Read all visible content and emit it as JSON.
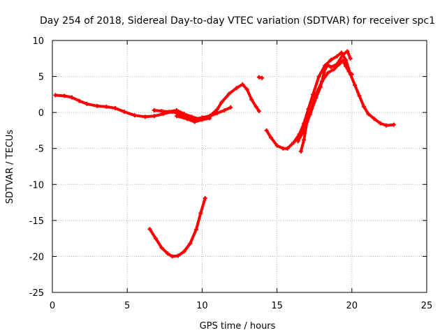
{
  "chart_data": {
    "type": "scatter",
    "title": "Day 254 of 2018, Sidereal Day-to-day VTEC variation (SDTVAR) for receiver spc1",
    "xlabel": "GPS time / hours",
    "ylabel": "SDTVAR / TECUs",
    "xlim": [
      0,
      25
    ],
    "ylim": [
      -25,
      10
    ],
    "xticks": [
      0,
      5,
      10,
      15,
      20,
      25
    ],
    "yticks": [
      10,
      5,
      0,
      -5,
      -10,
      -15,
      -20,
      -25
    ],
    "grid": true,
    "legend": "none",
    "color": "#ff0000",
    "series": [
      {
        "name": "segment-1",
        "points": [
          [
            0.2,
            2.4
          ],
          [
            0.8,
            2.3
          ],
          [
            1.3,
            2.1
          ],
          [
            1.8,
            1.6
          ],
          [
            2.3,
            1.2
          ],
          [
            3.0,
            0.9
          ],
          [
            3.6,
            0.8
          ],
          [
            4.2,
            0.6
          ],
          [
            4.8,
            0.1
          ],
          [
            5.5,
            -0.4
          ],
          [
            6.2,
            -0.6
          ],
          [
            6.8,
            -0.5
          ],
          [
            7.4,
            -0.2
          ],
          [
            8.0,
            0.1
          ],
          [
            8.6,
            -0.3
          ],
          [
            9.2,
            -0.8
          ],
          [
            9.6,
            -0.9
          ],
          [
            10.0,
            -0.7
          ],
          [
            10.5,
            -0.5
          ],
          [
            11.0,
            0.4
          ],
          [
            11.3,
            1.4
          ],
          [
            11.8,
            2.6
          ],
          [
            12.3,
            3.4
          ],
          [
            12.7,
            3.9
          ],
          [
            13.0,
            3.2
          ],
          [
            13.3,
            1.8
          ],
          [
            13.6,
            0.8
          ],
          [
            13.8,
            0.2
          ]
        ]
      },
      {
        "name": "segment-2",
        "points": [
          [
            6.8,
            0.3
          ],
          [
            7.3,
            0.2
          ],
          [
            7.8,
            0.1
          ],
          [
            8.3,
            0.3
          ],
          [
            8.8,
            -0.2
          ],
          [
            9.3,
            -0.6
          ],
          [
            9.8,
            -0.9
          ],
          [
            10.4,
            -0.6
          ],
          [
            11.0,
            -0.1
          ],
          [
            11.5,
            0.3
          ],
          [
            11.9,
            0.7
          ]
        ]
      },
      {
        "name": "segment-3",
        "points": [
          [
            8.3,
            -0.5
          ],
          [
            9.0,
            -0.9
          ],
          [
            9.5,
            -1.3
          ],
          [
            10.0,
            -1.0
          ],
          [
            10.5,
            -0.8
          ]
        ]
      },
      {
        "name": "segment-4",
        "points": [
          [
            13.8,
            4.9
          ],
          [
            14.0,
            4.8
          ]
        ]
      },
      {
        "name": "segment-5",
        "points": [
          [
            6.5,
            -16.2
          ],
          [
            6.9,
            -17.5
          ],
          [
            7.3,
            -18.8
          ],
          [
            7.7,
            -19.6
          ],
          [
            8.0,
            -20.0
          ],
          [
            8.4,
            -19.9
          ],
          [
            8.8,
            -19.3
          ],
          [
            9.2,
            -18.2
          ],
          [
            9.6,
            -16.3
          ],
          [
            9.9,
            -14.0
          ],
          [
            10.2,
            -11.9
          ]
        ]
      },
      {
        "name": "segment-6",
        "points": [
          [
            14.3,
            -2.5
          ],
          [
            14.6,
            -3.5
          ],
          [
            15.0,
            -4.6
          ],
          [
            15.4,
            -5.0
          ],
          [
            15.7,
            -5.0
          ],
          [
            16.1,
            -4.2
          ],
          [
            16.5,
            -3.0
          ],
          [
            16.8,
            -1.5
          ],
          [
            17.1,
            0.5
          ],
          [
            17.4,
            2.5
          ],
          [
            17.8,
            5.0
          ],
          [
            18.2,
            6.5
          ],
          [
            18.6,
            7.3
          ],
          [
            19.0,
            7.8
          ],
          [
            19.3,
            8.3
          ],
          [
            19.6,
            7.3
          ],
          [
            19.9,
            5.3
          ],
          [
            20.2,
            3.8
          ],
          [
            20.5,
            2.3
          ],
          [
            20.8,
            0.8
          ],
          [
            21.1,
            -0.2
          ],
          [
            21.5,
            -0.9
          ],
          [
            21.9,
            -1.5
          ],
          [
            22.3,
            -1.8
          ],
          [
            22.8,
            -1.7
          ]
        ]
      },
      {
        "name": "segment-7",
        "points": [
          [
            16.6,
            -5.4
          ],
          [
            16.8,
            -3.8
          ],
          [
            17.0,
            -1.3
          ],
          [
            17.3,
            0.5
          ],
          [
            17.6,
            2.5
          ],
          [
            18.0,
            4.3
          ],
          [
            18.4,
            5.5
          ],
          [
            18.8,
            6.0
          ],
          [
            19.2,
            6.8
          ],
          [
            19.4,
            7.2
          ],
          [
            19.6,
            6.4
          ],
          [
            19.8,
            5.7
          ],
          [
            20.0,
            5.3
          ]
        ]
      },
      {
        "name": "segment-8",
        "points": [
          [
            16.4,
            -4.0
          ],
          [
            16.8,
            -2.5
          ],
          [
            17.2,
            -0.3
          ],
          [
            17.6,
            2.0
          ],
          [
            17.9,
            3.5
          ],
          [
            18.2,
            6.0
          ],
          [
            18.4,
            6.6
          ],
          [
            18.6,
            6.3
          ],
          [
            19.0,
            6.7
          ],
          [
            19.4,
            8.0
          ],
          [
            19.7,
            8.5
          ],
          [
            19.9,
            7.5
          ]
        ]
      }
    ]
  }
}
